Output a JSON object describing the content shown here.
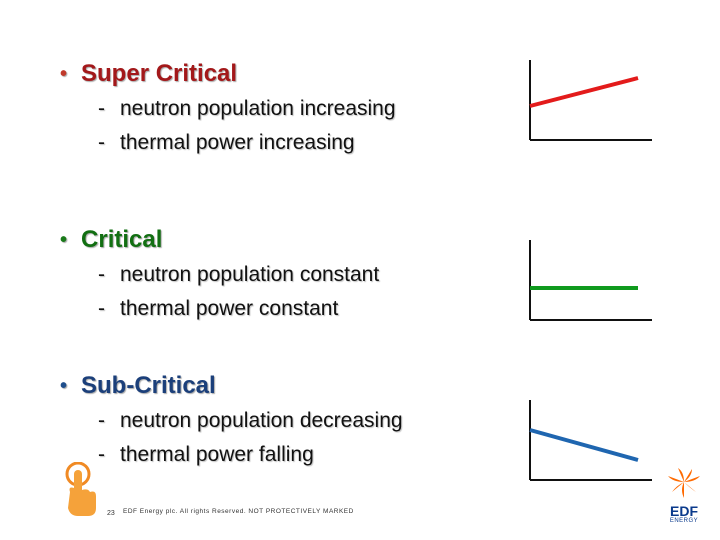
{
  "sections": [
    {
      "title": "Super Critical",
      "items": [
        "neutron population increasing",
        "thermal power increasing"
      ],
      "trend": "increasing",
      "color": "#e31b1b"
    },
    {
      "title": "Critical",
      "items": [
        "neutron population constant",
        "thermal power constant"
      ],
      "trend": "constant",
      "color": "#0f9a1e"
    },
    {
      "title": "Sub-Critical",
      "items": [
        "neutron population decreasing",
        "thermal power falling"
      ],
      "trend": "decreasing",
      "color": "#1f66b0"
    }
  ],
  "footer": {
    "page_number": "23",
    "text": "EDF Energy plc. All rights Reserved. NOT PROTECTIVELY MARKED"
  },
  "logo": {
    "brand": "EDF",
    "sub": "ENERGY"
  },
  "icons": {
    "bullet": "bullet-dot-icon",
    "hand": "hand-pointer-icon"
  },
  "colors": {
    "super_critical": "#a3181a",
    "critical": "#126f12",
    "sub_critical": "#1b3f7a",
    "logo_orange": "#ff6a00",
    "logo_blue": "#0a3a8c"
  }
}
